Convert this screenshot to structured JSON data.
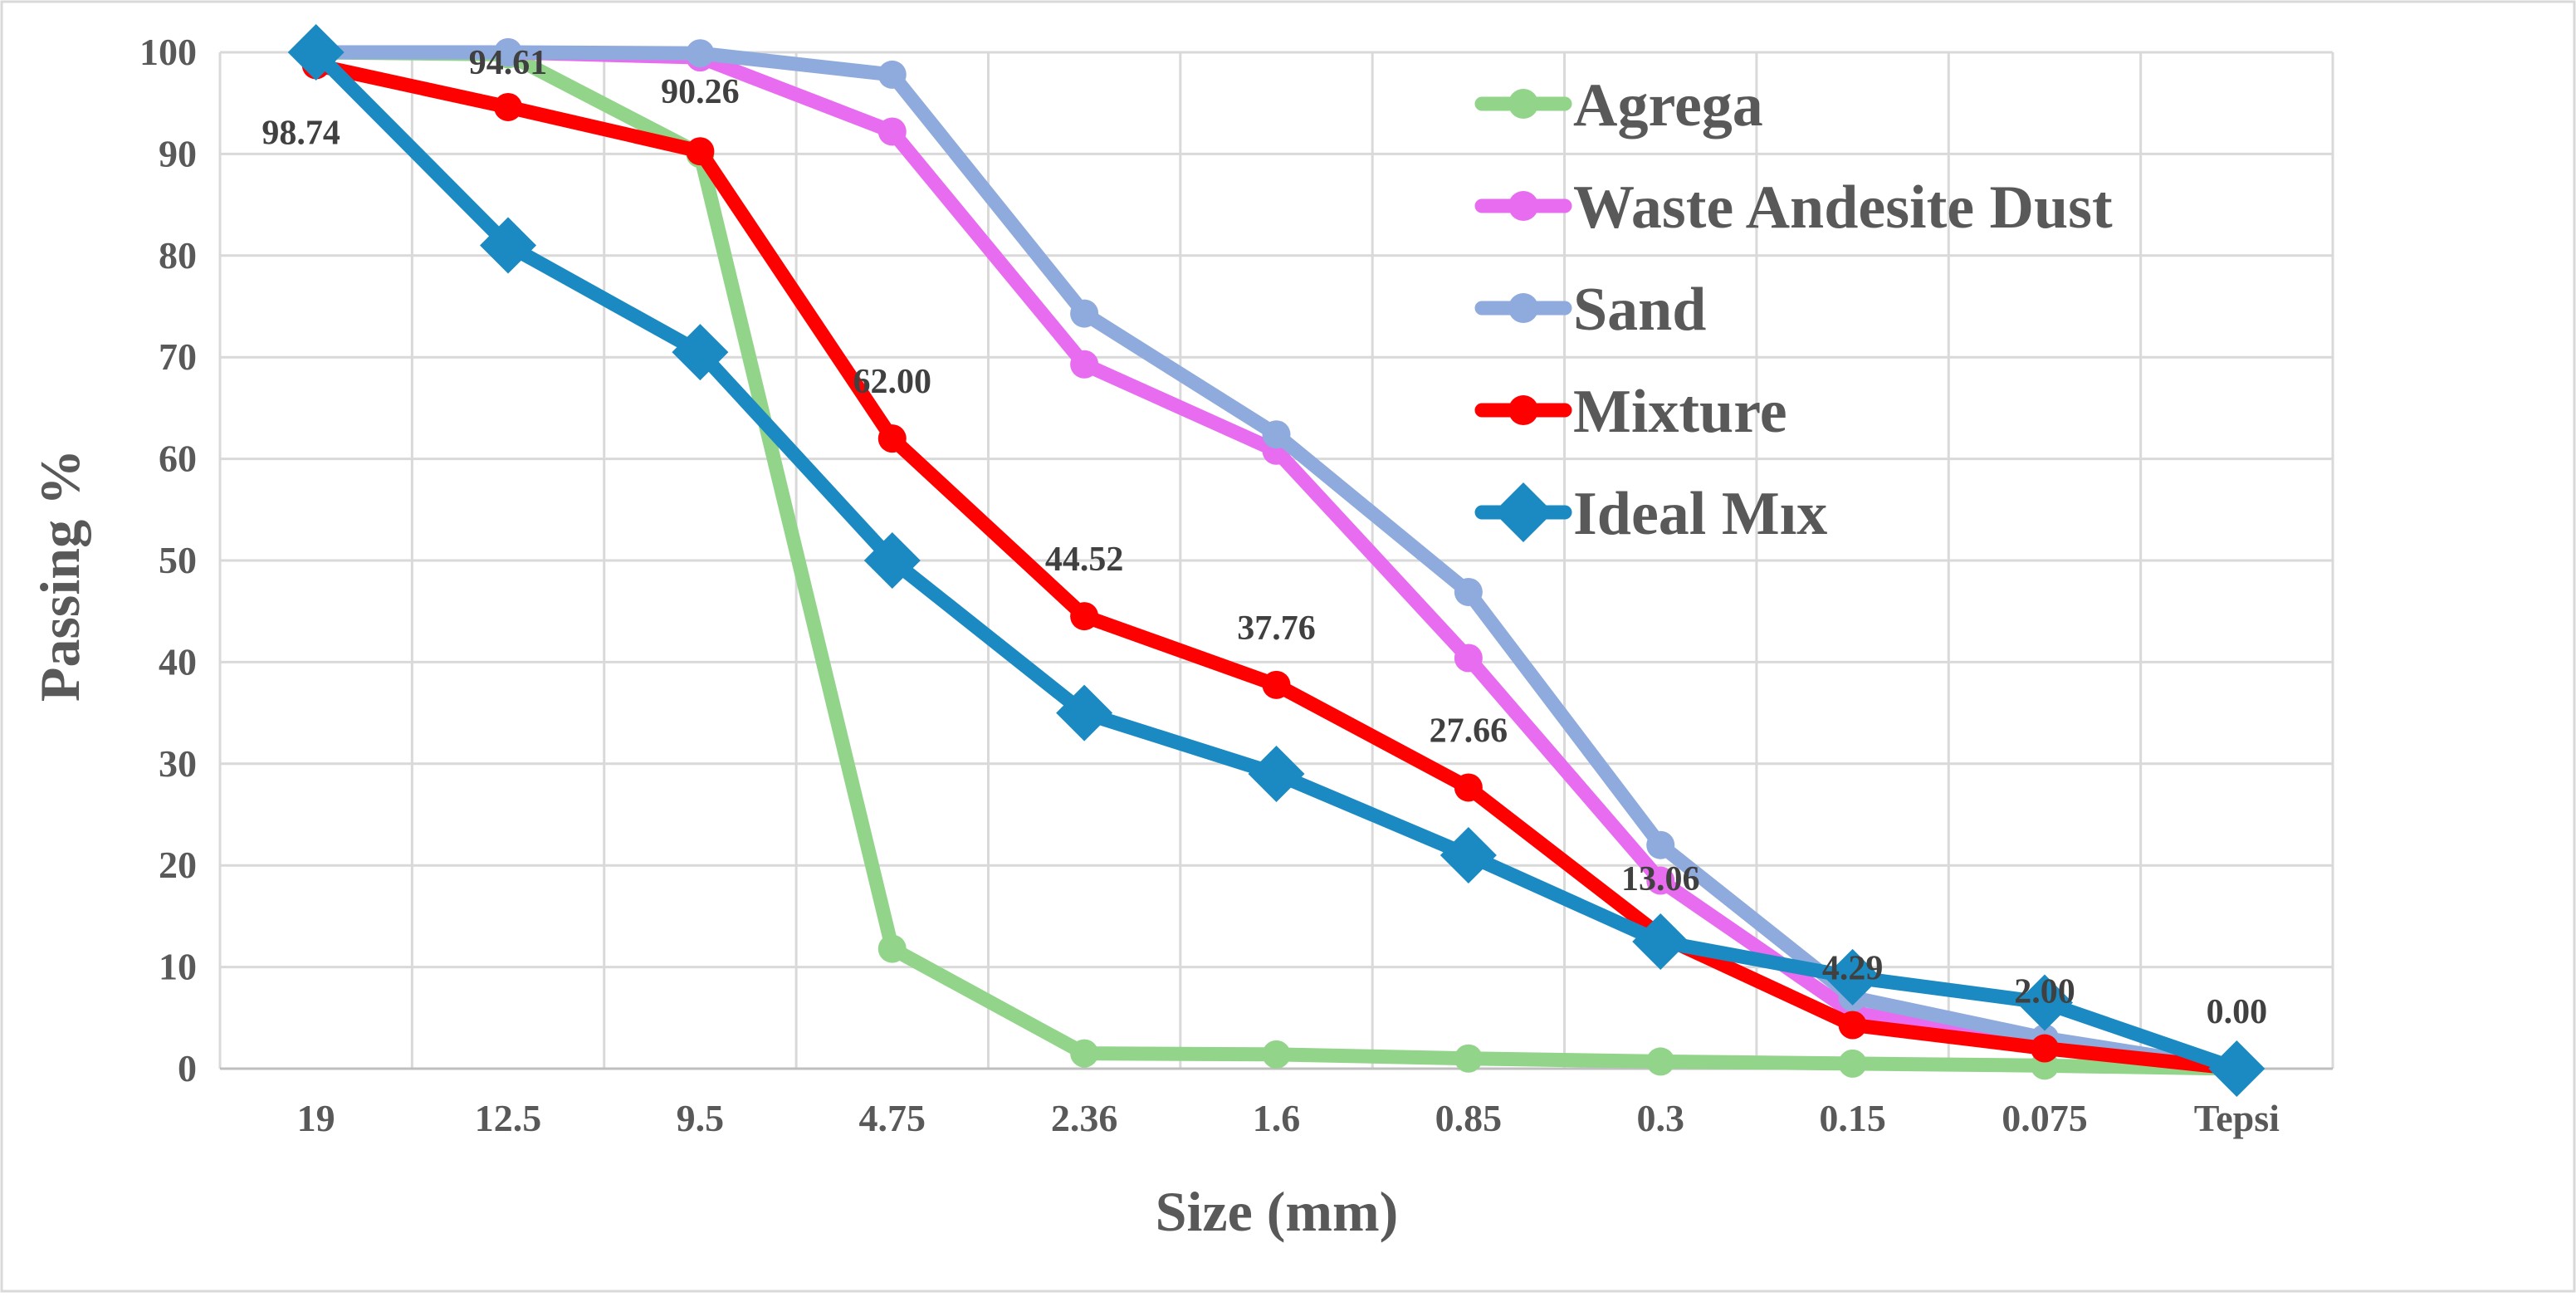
{
  "chart_data": {
    "type": "line",
    "title": "",
    "xlabel": "Size (mm)",
    "ylabel": "Passing %",
    "categories": [
      "19",
      "12.5",
      "9.5",
      "4.75",
      "2.36",
      "1.6",
      "0.85",
      "0.3",
      "0.15",
      "0.075",
      "Tepsi"
    ],
    "ylim": [
      0,
      100
    ],
    "yticks": [
      0,
      10,
      20,
      30,
      40,
      50,
      60,
      70,
      80,
      90,
      100
    ],
    "grid": true,
    "legend_position": "top-right",
    "series": [
      {
        "name": "Agrega",
        "color": "#92d48a",
        "marker": "circle",
        "values": [
          100,
          99.8,
          90,
          11.8,
          1.5,
          1.4,
          1.0,
          0.7,
          0.5,
          0.3,
          0
        ]
      },
      {
        "name": "Waste Andesite Dust",
        "color": "#e86cf0",
        "marker": "circle",
        "values": [
          100,
          100,
          99.5,
          92.2,
          69.3,
          60.8,
          40.4,
          18.5,
          5.5,
          2.5,
          0
        ]
      },
      {
        "name": "Sand",
        "color": "#8faadc",
        "marker": "circle",
        "values": [
          100,
          100,
          99.9,
          97.8,
          74.3,
          62.4,
          46.9,
          22,
          7,
          3,
          0
        ]
      },
      {
        "name": "Mixture",
        "color": "#ff0000",
        "marker": "circle",
        "values": [
          98.74,
          94.61,
          90.26,
          62.0,
          44.52,
          37.76,
          27.66,
          13.06,
          4.29,
          2.0,
          0.0
        ],
        "data_labels": [
          "98.74",
          "94.61",
          "90.26",
          "62.00",
          "44.52",
          "37.76",
          "27.66",
          "13.06",
          "4.29",
          "2.00",
          "0.00"
        ]
      },
      {
        "name": "Ideal Mıx",
        "color": "#1b8ac2",
        "marker": "diamond",
        "values": [
          100,
          81,
          70.5,
          50,
          35,
          29,
          21,
          12.5,
          9,
          6.5,
          0
        ]
      }
    ]
  }
}
